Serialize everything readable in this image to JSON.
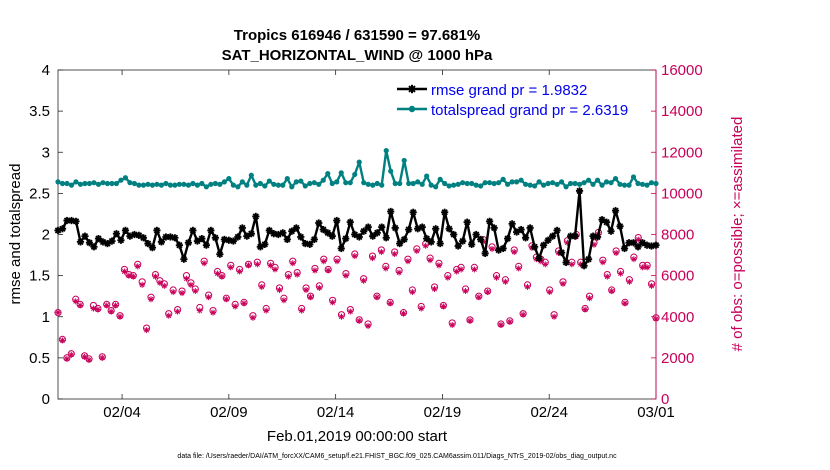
{
  "chart_data": {
    "type": "line",
    "title": "Tropics 616946 / 631590 = 97.681%",
    "subtitle": "SAT_HORIZONTAL_WIND @ 1000 hPa",
    "xlabel": "Feb.01,2019 00:00:00 start",
    "ylabel": "rmse and totalspread",
    "y2label": "# of obs: o=possible; ×=assimilated",
    "xlim": [
      1,
      29
    ],
    "ylim": [
      0,
      4
    ],
    "y2lim": [
      0,
      16000
    ],
    "xticks": [
      4,
      9,
      14,
      19,
      24,
      29
    ],
    "xtick_labels": [
      "02/04",
      "02/09",
      "02/14",
      "02/19",
      "02/24",
      "03/01"
    ],
    "yticks": [
      0,
      0.5,
      1,
      1.5,
      2,
      2.5,
      3,
      3.5,
      4
    ],
    "ytick_labels": [
      "0",
      "0.5",
      "1",
      "1.5",
      "2",
      "2.5",
      "3",
      "3.5",
      "4"
    ],
    "y2ticks": [
      0,
      2000,
      4000,
      6000,
      8000,
      10000,
      12000,
      14000,
      16000
    ],
    "y2tick_labels": [
      "0",
      "2000",
      "4000",
      "6000",
      "8000",
      "10000",
      "12000",
      "14000",
      "16000"
    ],
    "legend_position": "top-right",
    "series": [
      {
        "name": "rmse grand pr = 1.9832",
        "axis": "left",
        "color": "#000000",
        "marker": "asterisk",
        "values": [
          2.05,
          2.07,
          2.17,
          2.17,
          2.16,
          1.91,
          1.98,
          1.9,
          1.85,
          1.95,
          1.91,
          1.89,
          1.92,
          2.01,
          1.93,
          2.05,
          1.98,
          2.0,
          1.99,
          1.96,
          1.89,
          1.84,
          2.05,
          1.91,
          1.97,
          1.97,
          1.96,
          1.87,
          1.7,
          1.9,
          2.05,
          1.92,
          1.95,
          1.87,
          2.05,
          1.96,
          1.76,
          1.94,
          1.93,
          1.92,
          1.97,
          2.08,
          1.98,
          2.01,
          2.22,
          1.85,
          1.88,
          2.05,
          2.01,
          2.0,
          2.02,
          1.94,
          2.04,
          2.08,
          1.97,
          1.89,
          1.88,
          1.94,
          2.14,
          2.06,
          2.02,
          1.98,
          2.17,
          1.83,
          1.95,
          2.15,
          2.0,
          1.97,
          2.04,
          2.09,
          1.98,
          2.02,
          2.09,
          1.96,
          2.28,
          2.08,
          1.89,
          1.94,
          2.06,
          2.27,
          2.07,
          2.09,
          1.95,
          1.91,
          2.07,
          1.89,
          2.27,
          2.07,
          2.0,
          1.86,
          1.92,
          2.15,
          1.88,
          2.0,
          1.94,
          1.77,
          2.16,
          2.08,
          1.81,
          1.83,
          1.95,
          2.13,
          2.03,
          2.06,
          1.96,
          2.08,
          1.85,
          1.71,
          1.87,
          1.93,
          1.98,
          2.05,
          1.78,
          1.66,
          1.98,
          1.98,
          2.53,
          1.62,
          1.7,
          1.98,
          1.97,
          2.18,
          2.15,
          2.04,
          2.29,
          2.1,
          1.83,
          1.9,
          1.9,
          1.85,
          1.9,
          1.87,
          1.86,
          1.87
        ]
      },
      {
        "name": "totalspread grand pr = 2.6319",
        "axis": "left",
        "color": "#008080",
        "marker": "filled-circle",
        "values": [
          2.64,
          2.62,
          2.62,
          2.6,
          2.64,
          2.61,
          2.62,
          2.62,
          2.63,
          2.61,
          2.63,
          2.62,
          2.62,
          2.62,
          2.66,
          2.69,
          2.63,
          2.62,
          2.6,
          2.6,
          2.61,
          2.6,
          2.61,
          2.6,
          2.62,
          2.6,
          2.6,
          2.61,
          2.61,
          2.6,
          2.62,
          2.6,
          2.62,
          2.58,
          2.61,
          2.62,
          2.61,
          2.64,
          2.68,
          2.6,
          2.58,
          2.64,
          2.6,
          2.72,
          2.6,
          2.62,
          2.59,
          2.65,
          2.61,
          2.6,
          2.6,
          2.68,
          2.58,
          2.64,
          2.65,
          2.59,
          2.62,
          2.63,
          2.61,
          2.66,
          2.74,
          2.62,
          2.64,
          2.75,
          2.63,
          2.63,
          2.73,
          2.88,
          2.63,
          2.61,
          2.6,
          2.62,
          2.6,
          3.02,
          2.77,
          2.62,
          2.62,
          2.9,
          2.62,
          2.62,
          2.64,
          2.61,
          2.71,
          2.6,
          2.58,
          2.67,
          2.62,
          2.59,
          2.6,
          2.61,
          2.63,
          2.62,
          2.62,
          2.6,
          2.59,
          2.63,
          2.63,
          2.62,
          2.63,
          2.67,
          2.61,
          2.64,
          2.64,
          2.66,
          2.61,
          2.6,
          2.59,
          2.64,
          2.6,
          2.62,
          2.63,
          2.61,
          2.64,
          2.58,
          2.62,
          2.62,
          2.61,
          2.63,
          2.66,
          2.61,
          2.66,
          2.6,
          2.64,
          2.63,
          2.68,
          2.61,
          2.6,
          2.6,
          2.7,
          2.62,
          2.61,
          2.6,
          2.63,
          2.62
        ]
      },
      {
        "name": "possible",
        "axis": "right",
        "color": "#c8005a",
        "marker": "open-circle",
        "values": [
          4200,
          2900,
          2000,
          2200,
          4850,
          4600,
          2100,
          1950,
          4550,
          4400,
          2050,
          4600,
          4300,
          4600,
          4050,
          6300,
          6050,
          6000,
          6550,
          5700,
          3450,
          4950,
          6050,
          5750,
          5600,
          4150,
          5300,
          4350,
          5250,
          6000,
          5650,
          5350,
          4450,
          6700,
          5050,
          4300,
          6200,
          6000,
          4900,
          6500,
          4600,
          6300,
          4700,
          6550,
          4050,
          6650,
          5550,
          4400,
          6600,
          6400,
          5400,
          4900,
          6050,
          6700,
          6150,
          4400,
          5400,
          5000,
          6350,
          5500,
          6800,
          6300,
          4800,
          6800,
          4100,
          6100,
          4350,
          7050,
          3850,
          5850,
          3650,
          6950,
          5000,
          7250,
          6450,
          4700,
          7150,
          6250,
          4200,
          6800,
          5300,
          7300,
          4500,
          7550,
          6850,
          5450,
          6600,
          4550,
          6000,
          3700,
          6300,
          6400,
          5350,
          3850,
          6400,
          5000,
          7750,
          5250,
          7400,
          6000,
          3650,
          5800,
          3800,
          7250,
          6450,
          4150,
          5550,
          7450,
          6900,
          6800,
          6650,
          5300,
          4100,
          7200,
          5700,
          7700,
          6650,
          8000,
          6650,
          4400,
          5000,
          7600,
          8100,
          6750,
          6050,
          5300,
          7200,
          6200,
          4700,
          5800,
          6900,
          7850,
          6500,
          6500,
          5600,
          3950
        ]
      },
      {
        "name": "assimilated",
        "axis": "right",
        "color": "#c8005a",
        "marker": "times",
        "values": [
          4200,
          2850,
          1950,
          2150,
          4750,
          4550,
          2050,
          1900,
          4400,
          4350,
          2000,
          4550,
          4250,
          4550,
          4000,
          6200,
          6000,
          5950,
          6450,
          5550,
          3350,
          4850,
          5950,
          5650,
          5500,
          4050,
          5200,
          4250,
          5150,
          5850,
          5550,
          5250,
          4300,
          6600,
          4950,
          4200,
          6100,
          5950,
          4850,
          6400,
          4500,
          6200,
          4650,
          6500,
          3950,
          6550,
          5450,
          4300,
          6500,
          6300,
          5300,
          4800,
          5950,
          6600,
          6050,
          4300,
          5300,
          4950,
          6250,
          5400,
          6700,
          6250,
          4700,
          6700,
          4000,
          6000,
          4250,
          6950,
          3800,
          5750,
          3550,
          6850,
          4950,
          7150,
          6350,
          4650,
          7050,
          6150,
          4150,
          6700,
          5200,
          7200,
          4400,
          7450,
          6750,
          5350,
          6500,
          4500,
          5900,
          3600,
          6200,
          6300,
          5250,
          3800,
          6300,
          4950,
          7650,
          5200,
          7300,
          5900,
          3600,
          5700,
          3750,
          7150,
          6350,
          4100,
          5450,
          7350,
          6800,
          6700,
          6550,
          5200,
          4000,
          7100,
          5600,
          7600,
          6550,
          7900,
          6550,
          4350,
          4900,
          7500,
          8000,
          6650,
          5950,
          5250,
          7100,
          6100,
          4650,
          5700,
          6800,
          7750,
          6400,
          6400,
          5500,
          3900
        ]
      }
    ]
  },
  "footer": "data file: /Users/raeder/DAI/ATM_forcXX/CAM6_setup/f.e21.FHIST_BGC.f09_025.CAM6assim.011/Diags_NTrS_2019-02/obs_diag_output.nc"
}
